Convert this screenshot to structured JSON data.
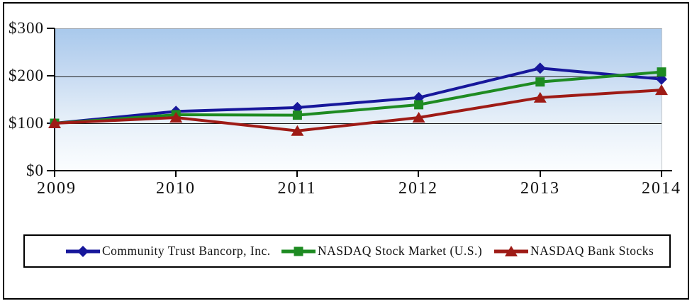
{
  "chart_data": {
    "type": "line",
    "title": "",
    "x": [
      "2009",
      "2010",
      "2011",
      "2012",
      "2013",
      "2014"
    ],
    "y_ticks": [
      "$0",
      "$100",
      "$200",
      "$300"
    ],
    "ylim": [
      0,
      300
    ],
    "grid": "horizontal gridlines at $100 and $200",
    "legend_position": "bottom boxed, horizontal",
    "plot_background": {
      "top": "#a9c9ec",
      "bottom": "#fbfdff"
    },
    "series": [
      {
        "name": "Community Trust Bancorp, Inc.",
        "color": "#17179b",
        "marker": "diamond",
        "values": [
          100,
          125,
          133,
          154,
          216,
          193
        ]
      },
      {
        "name": "NASDAQ Stock Market (U.S.)",
        "color": "#1e8b22",
        "marker": "square",
        "values": [
          100,
          118,
          117,
          139,
          187,
          208
        ]
      },
      {
        "name": "NASDAQ Bank Stocks",
        "color": "#9e1b16",
        "marker": "triangle",
        "values": [
          100,
          112,
          84,
          112,
          154,
          170
        ]
      }
    ]
  }
}
